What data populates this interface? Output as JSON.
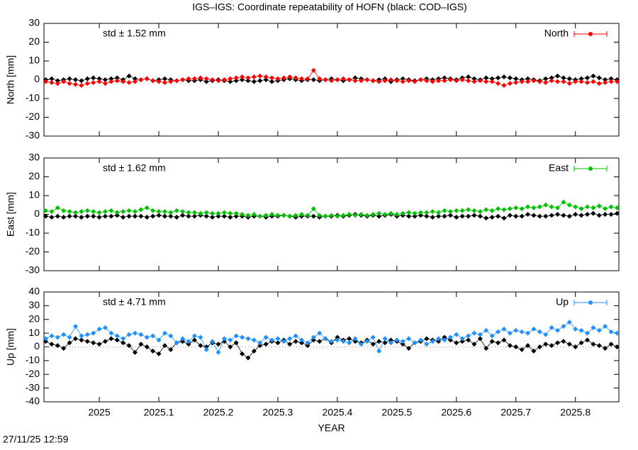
{
  "title": "IGS–IGS: Coordinate repeatability of HOFN (black: COD–IGS)",
  "timestamp": "27/11/25 12:59",
  "chart_data": [
    {
      "type": "line",
      "ylabel": "North [mm]",
      "annotation": {
        "text": "std ± 1.52 mm",
        "color": "#ff0000"
      },
      "legend": "top-right",
      "zero_line": false,
      "xlim": [
        2024.907,
        2025.873
      ],
      "xticks": [
        2025,
        2025.1,
        2025.2,
        2025.3,
        2025.4,
        2025.5,
        2025.6,
        2025.7,
        2025.8
      ],
      "xtick_labels": false,
      "ylim": [
        -30,
        30
      ],
      "yticks": [
        -30,
        -20,
        -10,
        0,
        10,
        20,
        30
      ],
      "x": [
        2024.91,
        2024.92,
        2024.93,
        2024.94,
        2024.95,
        2024.96,
        2024.97,
        2024.98,
        2024.99,
        2025.0,
        2025.01,
        2025.02,
        2025.03,
        2025.04,
        2025.05,
        2025.06,
        2025.07,
        2025.08,
        2025.09,
        2025.1,
        2025.11,
        2025.12,
        2025.13,
        2025.14,
        2025.15,
        2025.16,
        2025.17,
        2025.18,
        2025.19,
        2025.2,
        2025.21,
        2025.22,
        2025.23,
        2025.24,
        2025.25,
        2025.26,
        2025.27,
        2025.28,
        2025.29,
        2025.3,
        2025.31,
        2025.32,
        2025.33,
        2025.34,
        2025.35,
        2025.36,
        2025.37,
        2025.38,
        2025.39,
        2025.4,
        2025.41,
        2025.42,
        2025.43,
        2025.44,
        2025.45,
        2025.46,
        2025.47,
        2025.48,
        2025.49,
        2025.5,
        2025.51,
        2025.52,
        2025.53,
        2025.54,
        2025.55,
        2025.56,
        2025.57,
        2025.58,
        2025.59,
        2025.6,
        2025.61,
        2025.62,
        2025.63,
        2025.64,
        2025.65,
        2025.66,
        2025.67,
        2025.68,
        2025.69,
        2025.7,
        2025.71,
        2025.72,
        2025.73,
        2025.74,
        2025.75,
        2025.76,
        2025.77,
        2025.78,
        2025.79,
        2025.8,
        2025.81,
        2025.82,
        2025.83,
        2025.84,
        2025.85,
        2025.86,
        2025.87
      ],
      "series": [
        {
          "color": "#000000",
          "values": [
            0,
            0.5,
            -0.5,
            0,
            0.5,
            0,
            -0.5,
            0.5,
            1,
            0.5,
            0,
            0.5,
            1,
            0,
            2,
            0.5,
            0,
            0.5,
            -0.5,
            0,
            0.5,
            0,
            -0.5,
            0,
            -0.5,
            -0.5,
            0,
            -1,
            -0.5,
            0,
            -0.5,
            -1,
            -0.5,
            0,
            -0.5,
            -1,
            -0.5,
            0,
            -1,
            -0.5,
            0,
            0.5,
            0,
            -0.5,
            0,
            0,
            -0.5,
            0,
            0.5,
            0,
            -0.5,
            0,
            1,
            0.5,
            0,
            -0.5,
            0,
            0.5,
            -1,
            0,
            0.5,
            0,
            -0.5,
            0,
            0.5,
            0,
            0.5,
            1,
            0.5,
            0,
            1,
            1.5,
            0.5,
            0,
            1,
            0.5,
            1,
            1.5,
            1,
            0.5,
            0,
            0.5,
            0,
            -0.5,
            0.5,
            1,
            2,
            1,
            0.5,
            0,
            0.5,
            1,
            2,
            1,
            0,
            0.5,
            0
          ]
        },
        {
          "name": "North",
          "color": "#ff0000",
          "values": [
            -1,
            -1.5,
            -2,
            -1,
            -2,
            -2.5,
            -3,
            -2,
            -1.5,
            -1,
            -2,
            -1,
            -0.5,
            -1,
            -1.5,
            -1,
            0,
            0.5,
            -0.5,
            -1,
            -1.5,
            -1,
            -0.5,
            0,
            0.5,
            0.5,
            1,
            0.5,
            0,
            -0.5,
            0,
            0.5,
            1,
            1.5,
            1,
            1.5,
            2,
            1.5,
            1,
            0.5,
            1,
            1.5,
            1,
            0.5,
            0.5,
            5,
            0.5,
            0,
            -0.5,
            0,
            0.5,
            0,
            -0.5,
            -0.5,
            0,
            -0.5,
            -1,
            -0.5,
            0,
            -0.5,
            -1,
            -0.5,
            -1,
            0,
            -0.5,
            -1,
            -0.5,
            -0.5,
            0,
            -0.5,
            0,
            -0.5,
            -1,
            -0.5,
            -1,
            -1,
            -2,
            -3,
            -2,
            -1.5,
            -1,
            -1,
            -0.5,
            -1,
            -1.5,
            -0.5,
            -1,
            -1,
            -2,
            -1,
            -1,
            -1.5,
            -1,
            -2,
            -1.5,
            -1,
            -1
          ]
        }
      ]
    },
    {
      "type": "line",
      "ylabel": "East [mm]",
      "annotation": {
        "text": "std ± 1.62 mm",
        "color": "#00c000"
      },
      "legend": "top-right",
      "zero_line": false,
      "xlim": [
        2024.907,
        2025.873
      ],
      "xticks": [
        2025,
        2025.1,
        2025.2,
        2025.3,
        2025.4,
        2025.5,
        2025.6,
        2025.7,
        2025.8
      ],
      "xtick_labels": false,
      "ylim": [
        -30,
        30
      ],
      "yticks": [
        -30,
        -20,
        -10,
        0,
        10,
        20,
        30
      ],
      "x": [
        2024.91,
        2024.92,
        2024.93,
        2024.94,
        2024.95,
        2024.96,
        2024.97,
        2024.98,
        2024.99,
        2025.0,
        2025.01,
        2025.02,
        2025.03,
        2025.04,
        2025.05,
        2025.06,
        2025.07,
        2025.08,
        2025.09,
        2025.1,
        2025.11,
        2025.12,
        2025.13,
        2025.14,
        2025.15,
        2025.16,
        2025.17,
        2025.18,
        2025.19,
        2025.2,
        2025.21,
        2025.22,
        2025.23,
        2025.24,
        2025.25,
        2025.26,
        2025.27,
        2025.28,
        2025.29,
        2025.3,
        2025.31,
        2025.32,
        2025.33,
        2025.34,
        2025.35,
        2025.36,
        2025.37,
        2025.38,
        2025.39,
        2025.4,
        2025.41,
        2025.42,
        2025.43,
        2025.44,
        2025.45,
        2025.46,
        2025.47,
        2025.48,
        2025.49,
        2025.5,
        2025.51,
        2025.52,
        2025.53,
        2025.54,
        2025.55,
        2025.56,
        2025.57,
        2025.58,
        2025.59,
        2025.6,
        2025.61,
        2025.62,
        2025.63,
        2025.64,
        2025.65,
        2025.66,
        2025.67,
        2025.68,
        2025.69,
        2025.7,
        2025.71,
        2025.72,
        2025.73,
        2025.74,
        2025.75,
        2025.76,
        2025.77,
        2025.78,
        2025.79,
        2025.8,
        2025.81,
        2025.82,
        2025.83,
        2025.84,
        2025.85,
        2025.86,
        2025.87
      ],
      "series": [
        {
          "color": "#000000",
          "values": [
            -1,
            -1.5,
            -1,
            -1.5,
            -1,
            -1,
            -1.5,
            -1,
            -1,
            -1.5,
            -1,
            -1,
            -0.5,
            -1.5,
            -1,
            -1,
            -1,
            -1.5,
            -1,
            -0.5,
            -1,
            -1,
            -1.5,
            -0.5,
            -1,
            -1,
            -0.5,
            -1,
            -1.5,
            -1,
            -1,
            -1.5,
            -1,
            -1,
            -1.5,
            -1,
            -1,
            -1.5,
            -1,
            -1,
            -0.5,
            -1,
            -1.5,
            -1,
            -1,
            -1,
            -1.5,
            -1,
            -1,
            -0.5,
            -1,
            -0.5,
            0,
            -0.5,
            -1,
            -0.5,
            -1,
            -0.5,
            0,
            -1,
            -0.5,
            -1,
            -1,
            -0.5,
            -1,
            -1.5,
            -1,
            -1,
            -0.5,
            -1.5,
            -1,
            -1,
            -0.5,
            -1,
            -2,
            -1.5,
            -1,
            -2,
            -0.5,
            -1,
            -1,
            0,
            -0.5,
            -1,
            -1,
            -0.5,
            0,
            -0.5,
            -1,
            0,
            -0.5,
            0,
            0.5,
            -0.5,
            0,
            0,
            0.5
          ]
        },
        {
          "name": "East",
          "color": "#00c000",
          "values": [
            2,
            1.5,
            3.5,
            2,
            1.5,
            1,
            1.5,
            2,
            1.5,
            1,
            1.5,
            2,
            1,
            1.5,
            2,
            1.5,
            2.5,
            3.5,
            2,
            1.5,
            1.5,
            1,
            2,
            1.5,
            1,
            1,
            0.5,
            1,
            0.5,
            0.5,
            1,
            0.5,
            0.5,
            0,
            -0.5,
            0,
            -1,
            -0.5,
            0,
            -0.5,
            -0.5,
            -1,
            -0.5,
            0,
            -0.5,
            3,
            -0.5,
            -1,
            -0.5,
            -1,
            -0.5,
            0,
            -0.5,
            0,
            -0.5,
            0,
            0.5,
            0,
            0.5,
            0,
            0.5,
            1,
            0.5,
            1,
            1,
            1.5,
            1,
            2,
            1.5,
            2,
            2,
            2.5,
            2,
            1.5,
            2.5,
            2,
            3,
            2.5,
            3,
            3.5,
            3,
            4,
            3.5,
            4,
            5,
            4,
            3.5,
            6.5,
            5,
            4,
            3,
            4,
            3.5,
            4.5,
            3,
            4,
            3.5
          ]
        }
      ]
    },
    {
      "type": "line",
      "ylabel": "Up [mm]",
      "xlabel": "YEAR",
      "annotation": {
        "text": "std ± 4.71 mm",
        "color": "#1e90ff"
      },
      "legend": "top-right",
      "zero_line": true,
      "xlim": [
        2024.907,
        2025.873
      ],
      "xticks": [
        2025,
        2025.1,
        2025.2,
        2025.3,
        2025.4,
        2025.5,
        2025.6,
        2025.7,
        2025.8
      ],
      "xtick_labels": true,
      "ylim": [
        -40,
        40
      ],
      "yticks": [
        -40,
        -30,
        -20,
        -10,
        0,
        10,
        20,
        30,
        40
      ],
      "x": [
        2024.91,
        2024.92,
        2024.93,
        2024.94,
        2024.95,
        2024.96,
        2024.97,
        2024.98,
        2024.99,
        2025.0,
        2025.01,
        2025.02,
        2025.03,
        2025.04,
        2025.05,
        2025.06,
        2025.07,
        2025.08,
        2025.09,
        2025.1,
        2025.11,
        2025.12,
        2025.13,
        2025.14,
        2025.15,
        2025.16,
        2025.17,
        2025.18,
        2025.19,
        2025.2,
        2025.21,
        2025.22,
        2025.23,
        2025.24,
        2025.25,
        2025.26,
        2025.27,
        2025.28,
        2025.29,
        2025.3,
        2025.31,
        2025.32,
        2025.33,
        2025.34,
        2025.35,
        2025.36,
        2025.37,
        2025.38,
        2025.39,
        2025.4,
        2025.41,
        2025.42,
        2025.43,
        2025.44,
        2025.45,
        2025.46,
        2025.47,
        2025.48,
        2025.49,
        2025.5,
        2025.51,
        2025.52,
        2025.53,
        2025.54,
        2025.55,
        2025.56,
        2025.57,
        2025.58,
        2025.59,
        2025.6,
        2025.61,
        2025.62,
        2025.63,
        2025.64,
        2025.65,
        2025.66,
        2025.67,
        2025.68,
        2025.69,
        2025.7,
        2025.71,
        2025.72,
        2025.73,
        2025.74,
        2025.75,
        2025.76,
        2025.77,
        2025.78,
        2025.79,
        2025.8,
        2025.81,
        2025.82,
        2025.83,
        2025.84,
        2025.85,
        2025.86,
        2025.87
      ],
      "series": [
        {
          "color": "#000000",
          "values": [
            4,
            2,
            1,
            -1,
            3,
            6,
            5,
            4,
            3,
            2,
            4,
            6,
            5,
            3,
            1,
            -4,
            2,
            0,
            -3,
            -5,
            1,
            -2,
            3,
            4,
            2,
            5,
            1,
            0,
            3,
            2,
            4,
            0,
            3,
            -5,
            -8,
            -3,
            1,
            2,
            4,
            3,
            5,
            2,
            4,
            3,
            1,
            5,
            4,
            6,
            3,
            7,
            5,
            6,
            4,
            3,
            5,
            2,
            4,
            3,
            5,
            4,
            2,
            -1,
            3,
            4,
            6,
            5,
            4,
            7,
            5,
            3,
            4,
            5,
            2,
            6,
            -1,
            4,
            3,
            5,
            1,
            0,
            -2,
            1,
            -3,
            0,
            2,
            1,
            3,
            4,
            2,
            0,
            3,
            5,
            2,
            1,
            -1,
            2,
            0
          ]
        },
        {
          "name": "Up",
          "color": "#1e90ff",
          "values": [
            6,
            8,
            7,
            9,
            7,
            15,
            8,
            9,
            10,
            13,
            14,
            10,
            8,
            6,
            9,
            10,
            9,
            7,
            8,
            5,
            10,
            8,
            3,
            6,
            4,
            8,
            7,
            -2,
            4,
            -4,
            6,
            5,
            8,
            7,
            6,
            5,
            3,
            7,
            5,
            6,
            4,
            6,
            8,
            5,
            3,
            7,
            10,
            6,
            4,
            5,
            4,
            3,
            6,
            2,
            4,
            7,
            -3,
            6,
            3,
            5,
            4,
            6,
            3,
            5,
            2,
            4,
            6,
            5,
            7,
            9,
            6,
            8,
            10,
            9,
            12,
            8,
            11,
            13,
            10,
            12,
            11,
            10,
            13,
            11,
            9,
            14,
            12,
            15,
            18,
            13,
            12,
            10,
            14,
            12,
            15,
            11,
            10
          ]
        }
      ]
    }
  ]
}
